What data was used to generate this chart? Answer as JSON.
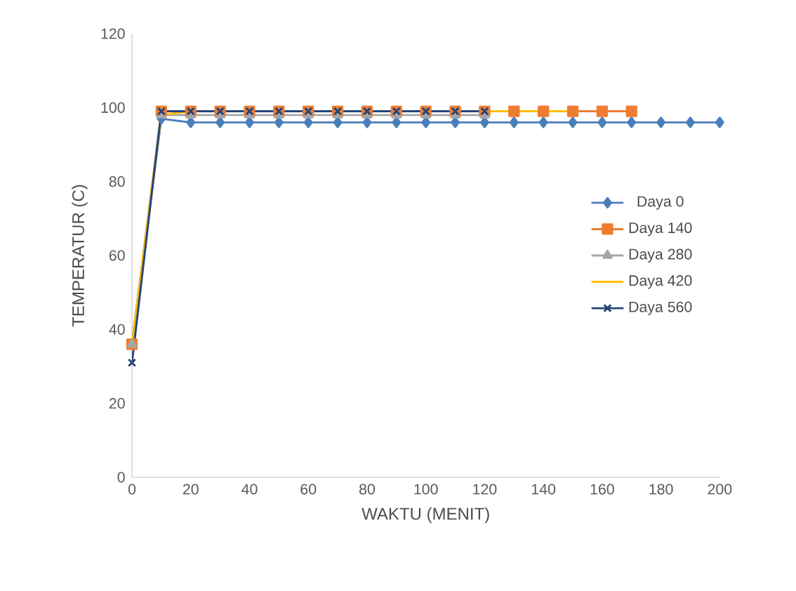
{
  "chart_data": {
    "type": "line",
    "xlabel": "WAKTU (MENIT)",
    "ylabel": "TEMPERATUR (C)",
    "xlim": [
      0,
      200
    ],
    "ylim": [
      0,
      120
    ],
    "xticks": [
      0,
      20,
      40,
      60,
      80,
      100,
      120,
      140,
      160,
      180,
      200
    ],
    "yticks": [
      0,
      20,
      40,
      60,
      80,
      100,
      120
    ],
    "legend": "right",
    "series": [
      {
        "name": "Daya 0",
        "color": "#4a7ebb",
        "marker": "diamond",
        "x": [
          0,
          10,
          20,
          30,
          40,
          50,
          60,
          70,
          80,
          90,
          100,
          110,
          120,
          130,
          140,
          150,
          160,
          170,
          180,
          190,
          200
        ],
        "values": [
          36,
          97,
          96,
          96,
          96,
          96,
          96,
          96,
          96,
          96,
          96,
          96,
          96,
          96,
          96,
          96,
          96,
          96,
          96,
          96,
          96
        ]
      },
      {
        "name": "Daya 140",
        "color": "#ed7d31",
        "marker": "square",
        "x": [
          0,
          10,
          20,
          30,
          40,
          50,
          60,
          70,
          80,
          90,
          100,
          110,
          120,
          130,
          140,
          150,
          160,
          170
        ],
        "values": [
          36,
          99,
          99,
          99,
          99,
          99,
          99,
          99,
          99,
          99,
          99,
          99,
          99,
          99,
          99,
          99,
          99,
          99
        ]
      },
      {
        "name": "Daya 280",
        "color": "#a5a5a5",
        "marker": "triangle",
        "x": [
          0,
          10,
          20,
          30,
          40,
          50,
          60,
          70,
          80,
          90,
          100,
          110,
          120
        ],
        "values": [
          36,
          98,
          98,
          98,
          98,
          98,
          98,
          98,
          98,
          98,
          98,
          98,
          98
        ]
      },
      {
        "name": "Daya 420",
        "color": "#ffc000",
        "marker": "none",
        "x": [
          0,
          10,
          20,
          30,
          40,
          50,
          60,
          70,
          80,
          90,
          100,
          110,
          120,
          130,
          140,
          150
        ],
        "values": [
          36,
          98,
          99,
          null,
          null,
          null,
          null,
          null,
          null,
          null,
          null,
          null,
          99,
          99,
          99,
          99
        ]
      },
      {
        "name": "Daya 560",
        "color": "#264478",
        "marker": "cross",
        "x": [
          0,
          10,
          20,
          30,
          40,
          50,
          60,
          70,
          80,
          90,
          100,
          110,
          120
        ],
        "values": [
          31,
          99,
          99,
          99,
          99,
          99,
          99,
          99,
          99,
          99,
          99,
          99,
          99
        ]
      }
    ]
  }
}
